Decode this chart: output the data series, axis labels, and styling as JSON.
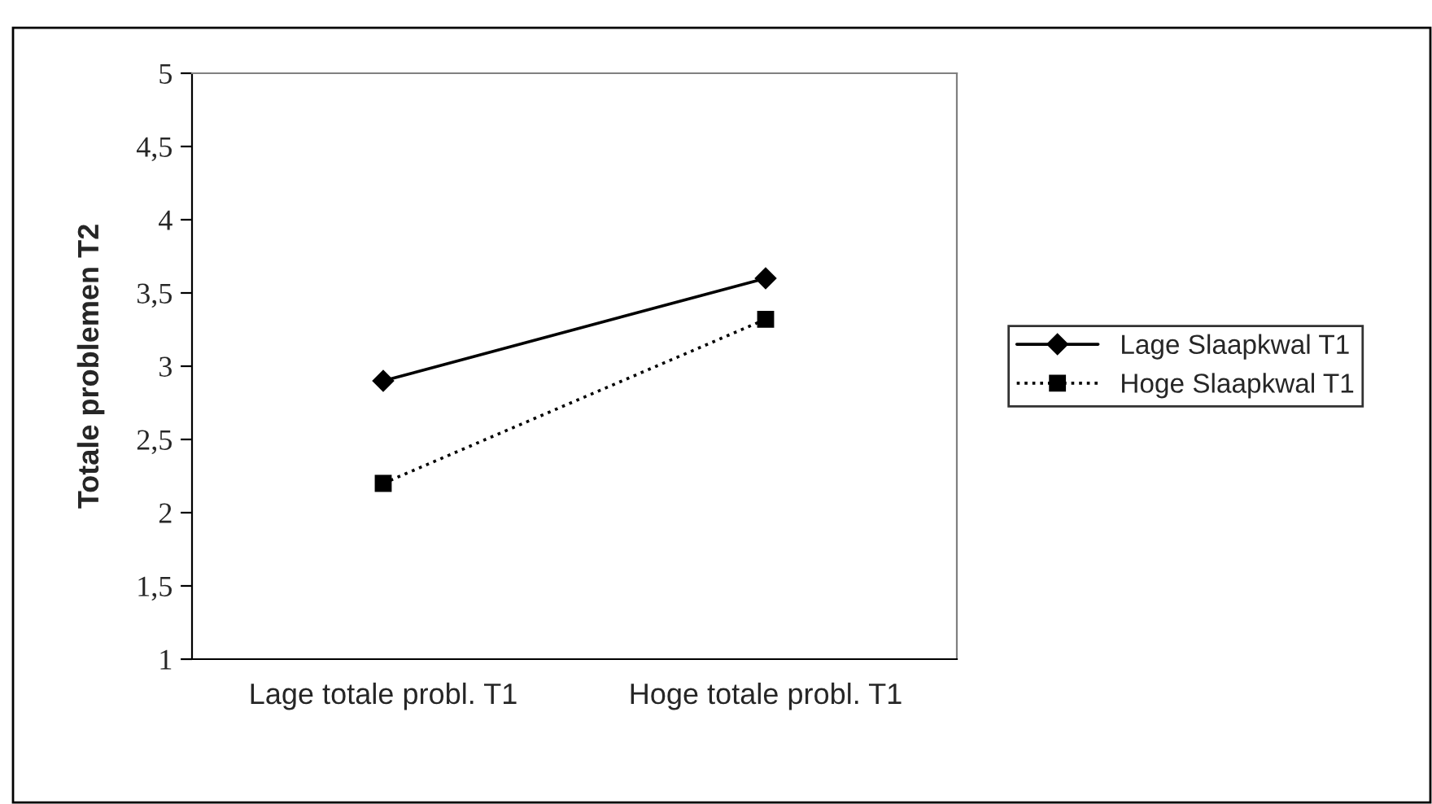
{
  "chart_data": {
    "type": "line",
    "ylabel": "Totale problemen T2",
    "categories": [
      "Lage totale probl. T1",
      "Hoge totale probl. T1"
    ],
    "series": [
      {
        "name": "Lage Slaapkwal T1",
        "color": "#000000",
        "values": [
          2.9,
          3.6
        ],
        "marker": "diamond",
        "line_style": "solid"
      },
      {
        "name": "Hoge Slaapkwal T1",
        "color": "#000000",
        "values": [
          2.2,
          3.32
        ],
        "marker": "square",
        "line_style": "dotted"
      }
    ],
    "ylim": [
      1,
      5
    ],
    "yticks": [
      {
        "value": 1,
        "label": "1"
      },
      {
        "value": 1.5,
        "label": "1,5"
      },
      {
        "value": 2,
        "label": "2"
      },
      {
        "value": 2.5,
        "label": "2,5"
      },
      {
        "value": 3,
        "label": "3"
      },
      {
        "value": 3.5,
        "label": "3,5"
      },
      {
        "value": 4,
        "label": "4"
      },
      {
        "value": 4.5,
        "label": "4,5"
      },
      {
        "value": 5,
        "label": "5"
      }
    ],
    "grid": false,
    "legend": "right"
  }
}
